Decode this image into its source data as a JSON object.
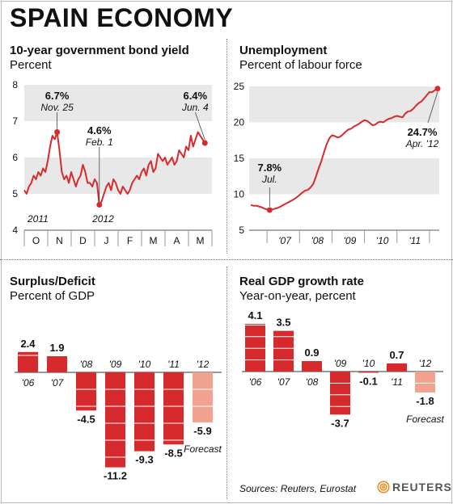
{
  "page_title": "SPAIN ECONOMY",
  "source": "Sources: Reuters, Eurostat",
  "logo_text": "REUTERS",
  "colors": {
    "red": "#d62a2c",
    "pink": "#f2a390",
    "band": "#e8e8e8",
    "axis": "#555555"
  },
  "chart_data": [
    {
      "id": "bond",
      "type": "line",
      "title": "10-year government bond yield",
      "subtitle": "Percent",
      "ylim": [
        4,
        8
      ],
      "yticks": [
        4,
        5,
        6,
        7,
        8
      ],
      "bands": [
        [
          7,
          8
        ],
        [
          5,
          6
        ]
      ],
      "xlim": [
        0,
        8
      ],
      "month_labels": [
        "O",
        "N",
        "D",
        "J",
        "F",
        "M",
        "A",
        "M"
      ],
      "year_labels": [
        "2011",
        "2012"
      ],
      "series": [
        {
          "x": [
            0.0,
            0.1,
            0.2,
            0.3,
            0.4,
            0.5,
            0.6,
            0.7,
            0.8,
            0.9,
            1.0,
            1.1,
            1.2,
            1.3,
            1.4,
            1.5,
            1.6,
            1.7,
            1.8,
            1.9,
            2.0,
            2.1,
            2.2,
            2.3,
            2.4,
            2.5,
            2.6,
            2.7,
            2.8,
            2.9,
            3.0,
            3.1,
            3.2,
            3.3,
            3.4,
            3.5,
            3.6,
            3.7,
            3.8,
            3.9,
            4.0,
            4.1,
            4.2,
            4.3,
            4.4,
            4.5,
            4.6,
            4.7,
            4.8,
            4.9,
            5.0,
            5.1,
            5.2,
            5.3,
            5.4,
            5.5,
            5.6,
            5.7,
            5.8,
            5.9,
            6.0,
            6.1,
            6.2,
            6.3,
            6.4,
            6.5,
            6.6,
            6.7,
            6.8,
            6.9,
            7.0,
            7.1,
            7.2,
            7.3,
            7.4,
            7.5,
            7.6,
            7.7
          ],
          "y": [
            5.1,
            5.0,
            5.2,
            5.3,
            5.5,
            5.4,
            5.6,
            5.5,
            5.7,
            5.6,
            5.9,
            6.3,
            6.6,
            6.5,
            6.7,
            6.2,
            5.6,
            5.4,
            5.5,
            5.3,
            5.6,
            5.4,
            5.2,
            5.4,
            5.5,
            5.8,
            5.6,
            5.3,
            5.3,
            5.2,
            5.4,
            5.3,
            4.7,
            4.8,
            5.0,
            5.2,
            5.3,
            5.1,
            5.4,
            5.3,
            5.1,
            5.0,
            5.2,
            5.1,
            5.0,
            5.1,
            5.3,
            5.4,
            5.5,
            5.4,
            5.6,
            5.7,
            5.5,
            5.8,
            5.9,
            5.6,
            5.7,
            6.1,
            6.0,
            5.9,
            6.0,
            5.8,
            5.9,
            6.0,
            5.8,
            5.9,
            6.2,
            6.1,
            6.0,
            6.3,
            6.2,
            6.6,
            6.3,
            6.5,
            6.7,
            6.6,
            6.5,
            6.4
          ]
        }
      ],
      "annotations": [
        {
          "value": "6.7%",
          "date": "Nov. 25"
        },
        {
          "value": "4.6%",
          "date": "Feb. 1"
        },
        {
          "value": "6.4%",
          "date": "Jun. 4"
        }
      ]
    },
    {
      "id": "unemployment",
      "type": "line",
      "title": "Unemployment",
      "subtitle": "Percent of labour force",
      "ylim": [
        5,
        25
      ],
      "yticks": [
        5,
        10,
        15,
        20,
        25
      ],
      "bands": [
        [
          20,
          25
        ],
        [
          10,
          15
        ]
      ],
      "xlim": [
        2006.45,
        2012.3
      ],
      "year_labels": [
        "'07",
        "'08",
        "'09",
        "'10",
        "'11"
      ],
      "series": [
        {
          "x": [
            2006.5,
            2006.58,
            2006.67,
            2006.75,
            2006.83,
            2006.92,
            2007.0,
            2007.08,
            2007.17,
            2007.25,
            2007.33,
            2007.42,
            2007.5,
            2007.58,
            2007.67,
            2007.75,
            2007.83,
            2007.92,
            2008.0,
            2008.08,
            2008.17,
            2008.25,
            2008.33,
            2008.42,
            2008.5,
            2008.58,
            2008.67,
            2008.75,
            2008.83,
            2008.92,
            2009.0,
            2009.08,
            2009.17,
            2009.25,
            2009.33,
            2009.42,
            2009.5,
            2009.58,
            2009.67,
            2009.75,
            2009.83,
            2009.92,
            2010.0,
            2010.08,
            2010.17,
            2010.25,
            2010.33,
            2010.42,
            2010.5,
            2010.58,
            2010.67,
            2010.75,
            2010.83,
            2010.92,
            2011.0,
            2011.08,
            2011.17,
            2011.25,
            2011.33,
            2011.42,
            2011.5,
            2011.58,
            2011.67,
            2011.75,
            2011.83,
            2011.92,
            2012.0,
            2012.08,
            2012.17,
            2012.25
          ],
          "y": [
            8.5,
            8.4,
            8.4,
            8.3,
            8.2,
            8.0,
            7.9,
            7.8,
            7.9,
            8.0,
            8.1,
            8.3,
            8.5,
            8.7,
            8.9,
            9.1,
            9.3,
            9.6,
            9.9,
            10.2,
            10.5,
            10.6,
            10.9,
            11.4,
            12.4,
            13.5,
            14.6,
            15.8,
            16.9,
            17.8,
            18.2,
            18.1,
            17.9,
            18.0,
            18.3,
            18.7,
            19.0,
            19.1,
            19.4,
            19.6,
            19.8,
            20.1,
            20.3,
            20.2,
            19.9,
            19.6,
            19.7,
            20.0,
            20.1,
            20.0,
            20.3,
            20.5,
            20.6,
            20.8,
            20.9,
            20.8,
            20.7,
            21.2,
            21.5,
            21.6,
            21.9,
            22.3,
            22.7,
            22.9,
            23.3,
            23.8,
            24.2,
            24.2,
            24.5,
            24.7
          ]
        }
      ],
      "annotations": [
        {
          "value": "7.8%",
          "date": "Jul."
        },
        {
          "value": "24.7%",
          "date": "Apr. '12"
        }
      ]
    },
    {
      "id": "deficit",
      "type": "bar",
      "title": "Surplus/Deficit",
      "subtitle": "Percent of GDP",
      "categories": [
        "'06",
        "'07",
        "'08",
        "'09",
        "'10",
        "'11",
        "'12"
      ],
      "values": [
        2.4,
        1.9,
        -4.5,
        -11.2,
        -9.3,
        -8.5,
        -5.9
      ],
      "value_labels": [
        "2.4",
        "1.9",
        "-4.5",
        "-11.2",
        "-9.3",
        "-8.5",
        "-5.9"
      ],
      "forecast_index": 6,
      "forecast_label": "Forecast",
      "grid_step": 2
    },
    {
      "id": "gdp",
      "type": "bar",
      "title": "Real GDP growth rate",
      "subtitle": "Year-on-year, percent",
      "categories": [
        "'06",
        "'07",
        "'08",
        "'09",
        "'10",
        "'11",
        "'12"
      ],
      "values": [
        4.1,
        3.5,
        0.9,
        -3.7,
        -0.1,
        0.7,
        -1.8
      ],
      "value_labels": [
        "4.1",
        "3.5",
        "0.9",
        "-3.7",
        "-0.1",
        "0.7",
        "-1.8"
      ],
      "forecast_index": 6,
      "forecast_label": "Forecast",
      "grid_step": 1
    }
  ]
}
